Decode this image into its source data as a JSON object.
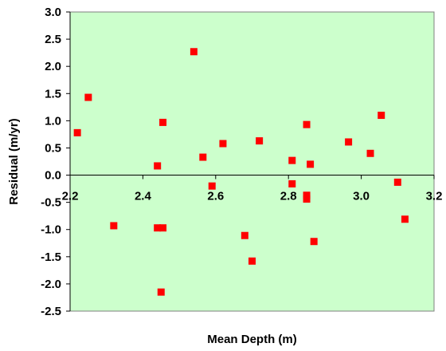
{
  "chart_data": {
    "type": "scatter",
    "title": "",
    "xlabel": "Mean Depth (m)",
    "ylabel": "Residual (m/yr)",
    "xlim": [
      2.2,
      3.2
    ],
    "ylim": [
      -2.5,
      3.0
    ],
    "x_ticks": [
      "2.2",
      "2.4",
      "2.6",
      "2.8",
      "3.0",
      "3.2"
    ],
    "y_ticks": [
      "3.0",
      "2.5",
      "2.0",
      "1.5",
      "1.0",
      "0.5",
      "0.0",
      "-0.5",
      "-1.0",
      "-1.5",
      "-2.0",
      "-2.5"
    ],
    "grid": false,
    "legend": "none",
    "colors": {
      "plot_background": "#ccffcc",
      "marker": "#ff0000",
      "axis": "#000000"
    },
    "series": [
      {
        "marker": "square",
        "points": [
          {
            "x": 2.22,
            "y": 0.78
          },
          {
            "x": 2.25,
            "y": 1.43
          },
          {
            "x": 2.32,
            "y": -0.93
          },
          {
            "x": 2.44,
            "y": 0.17
          },
          {
            "x": 2.44,
            "y": -0.97
          },
          {
            "x": 2.455,
            "y": 0.97
          },
          {
            "x": 2.455,
            "y": -0.97
          },
          {
            "x": 2.45,
            "y": -2.15
          },
          {
            "x": 2.54,
            "y": 2.27
          },
          {
            "x": 2.565,
            "y": 0.33
          },
          {
            "x": 2.59,
            "y": -0.2
          },
          {
            "x": 2.62,
            "y": 0.58
          },
          {
            "x": 2.68,
            "y": -1.11
          },
          {
            "x": 2.7,
            "y": -1.58
          },
          {
            "x": 2.72,
            "y": 0.63
          },
          {
            "x": 2.81,
            "y": 0.27
          },
          {
            "x": 2.81,
            "y": -0.16
          },
          {
            "x": 2.85,
            "y": 0.93
          },
          {
            "x": 2.85,
            "y": -0.37
          },
          {
            "x": 2.85,
            "y": -0.44
          },
          {
            "x": 2.86,
            "y": 0.2
          },
          {
            "x": 2.87,
            "y": -1.22
          },
          {
            "x": 2.965,
            "y": 0.61
          },
          {
            "x": 3.025,
            "y": 0.4
          },
          {
            "x": 3.055,
            "y": 1.1
          },
          {
            "x": 3.1,
            "y": -0.13
          },
          {
            "x": 3.12,
            "y": -0.81
          }
        ]
      }
    ]
  }
}
